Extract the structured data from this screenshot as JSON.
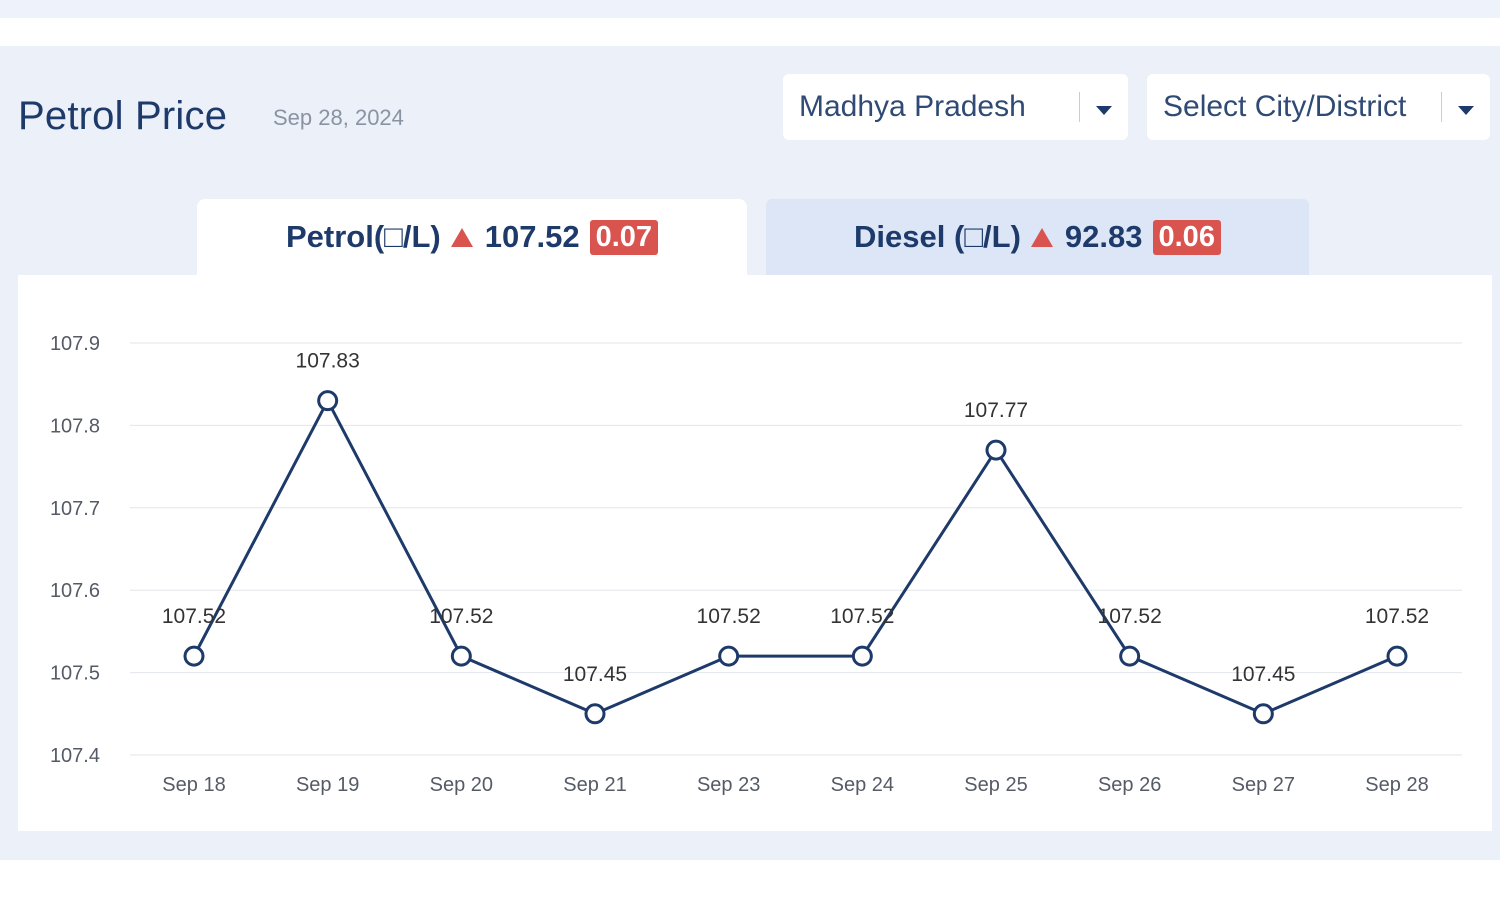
{
  "header": {
    "title": "Petrol Price",
    "date": "Sep 28, 2024"
  },
  "filters": {
    "state": "Madhya Pradesh",
    "city_placeholder": "Select City/District"
  },
  "tabs": [
    {
      "label": "Petrol(□/L)",
      "price": "107.52",
      "change": "0.07",
      "trend": "up"
    },
    {
      "label": "Diesel (□/L)",
      "price": "92.83",
      "change": "0.06",
      "trend": "up"
    }
  ],
  "colors": {
    "line": "#1d3a6a",
    "badge": "#d9534f",
    "panel": "#ecf0f9",
    "inactive_tab": "#dce6f7"
  },
  "chart_data": {
    "type": "line",
    "title": "Petrol Price",
    "xlabel": "",
    "ylabel": "",
    "categories": [
      "Sep 18",
      "Sep 19",
      "Sep 20",
      "Sep 21",
      "Sep 23",
      "Sep 24",
      "Sep 25",
      "Sep 26",
      "Sep 27",
      "Sep 28"
    ],
    "series": [
      {
        "name": "Petrol",
        "values": [
          107.52,
          107.83,
          107.52,
          107.45,
          107.52,
          107.52,
          107.77,
          107.52,
          107.45,
          107.52
        ]
      }
    ],
    "data_labels": [
      "107.52",
      "107.83",
      "107.52",
      "107.45",
      "107.52",
      "107.52",
      "107.77",
      "107.52",
      "107.45",
      "107.52"
    ],
    "yticks": [
      "107.9",
      "107.8",
      "107.7",
      "107.6",
      "107.5",
      "107.4"
    ],
    "ylim": [
      107.4,
      107.9
    ],
    "grid": true,
    "legend": "none"
  }
}
